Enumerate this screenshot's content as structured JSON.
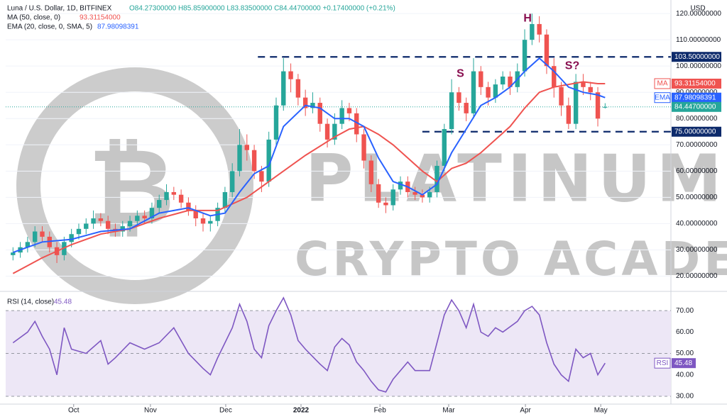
{
  "chart_data": {
    "type": "candlestick",
    "title": "Luna / U.S. Dollar, 1D, BITFINEX",
    "ohlc_text": "O84.27300000 H85.85900000 L83.83500000 C84.44700000 +0.17400000 (+0.21%)",
    "currency": "USD",
    "watermark": [
      "PLATINUM",
      "CRYPTO ACADEMY"
    ],
    "up_color": "#26a69a",
    "down_color": "#ef5350",
    "open": [
      28,
      29,
      31,
      33,
      37,
      35,
      31,
      28,
      33,
      36,
      38,
      40,
      42,
      41,
      38,
      37,
      39,
      41,
      43,
      42,
      46,
      49,
      52,
      51,
      48,
      45,
      42,
      40,
      41,
      46,
      52,
      60,
      70,
      68,
      60,
      56,
      72,
      85,
      98,
      95,
      88,
      84,
      86,
      78,
      72,
      78,
      84,
      82,
      74,
      64,
      55,
      48,
      47,
      53,
      56,
      52,
      51,
      50,
      52,
      62,
      76,
      90,
      86,
      82,
      98,
      92,
      88,
      93,
      96,
      92,
      98,
      110,
      116,
      112,
      100,
      92,
      85,
      78,
      94,
      92,
      90,
      84.273
    ],
    "high": [
      31,
      33,
      35,
      39,
      39,
      37,
      33,
      35,
      38,
      40,
      42,
      45,
      44,
      43,
      40,
      41,
      43,
      45,
      45,
      48,
      51,
      55,
      54,
      53,
      50,
      47,
      44,
      43,
      48,
      54,
      63,
      76,
      74,
      70,
      62,
      75,
      88,
      103,
      101,
      97,
      91,
      90,
      88,
      80,
      82,
      87,
      86,
      84,
      76,
      66,
      57,
      50,
      55,
      58,
      58,
      54,
      53,
      54,
      64,
      78,
      95,
      92,
      88,
      103,
      100,
      94,
      95,
      98,
      98,
      101,
      114,
      120,
      119,
      114,
      103,
      94,
      88,
      97,
      97,
      94,
      92,
      85.859
    ],
    "low": [
      26,
      27,
      29,
      31,
      33,
      29,
      25,
      26,
      31,
      34,
      36,
      38,
      39,
      36,
      35,
      35,
      37,
      39,
      40,
      40,
      44,
      47,
      49,
      46,
      43,
      39,
      37,
      37,
      39,
      44,
      50,
      58,
      64,
      57,
      52,
      54,
      70,
      83,
      90,
      85,
      81,
      82,
      75,
      69,
      70,
      76,
      79,
      71,
      61,
      52,
      46,
      44,
      45,
      51,
      50,
      49,
      48,
      48,
      50,
      60,
      74,
      83,
      79,
      80,
      89,
      85,
      86,
      91,
      89,
      90,
      96,
      108,
      109,
      97,
      88,
      81,
      76,
      76,
      89,
      87,
      77,
      83.835
    ],
    "close": [
      29,
      31,
      33,
      37,
      35,
      31,
      28,
      33,
      36,
      38,
      40,
      42,
      41,
      38,
      37,
      39,
      41,
      43,
      42,
      46,
      49,
      52,
      51,
      48,
      45,
      42,
      40,
      41,
      46,
      52,
      60,
      70,
      68,
      60,
      56,
      72,
      85,
      98,
      95,
      88,
      84,
      86,
      78,
      72,
      78,
      84,
      82,
      74,
      64,
      55,
      48,
      47,
      53,
      56,
      52,
      51,
      50,
      52,
      62,
      76,
      90,
      86,
      82,
      98,
      92,
      88,
      93,
      96,
      92,
      98,
      110,
      116,
      112,
      100,
      92,
      85,
      78,
      94,
      92,
      90,
      80,
      84.447
    ],
    "lines": [
      {
        "name": "MA (50, close, 0)",
        "value_label": "93.31154000",
        "tag": "MA",
        "color": "#ef5350",
        "x": [
          0,
          4,
          8,
          12,
          16,
          20,
          24,
          28,
          32,
          36,
          40,
          44,
          46,
          48,
          50,
          52,
          54,
          56,
          58,
          60,
          62,
          64,
          66,
          68,
          70,
          72,
          74,
          76,
          78,
          80,
          81
        ],
        "values": [
          21,
          27,
          32,
          36,
          38,
          42,
          45,
          45,
          50,
          58,
          66,
          73,
          76,
          77,
          74,
          70,
          65,
          60,
          56,
          61,
          63,
          67,
          72,
          77,
          84,
          90,
          92,
          93,
          94,
          93.3,
          93.31154
        ]
      },
      {
        "name": "EMA (20, close, 0, SMA, 5)",
        "value_label": "87.98098391",
        "tag": "EMA",
        "color": "#2962ff",
        "x": [
          0,
          4,
          8,
          12,
          16,
          20,
          24,
          27,
          29,
          31,
          33,
          35,
          37,
          40,
          42,
          44,
          46,
          48,
          50,
          52,
          54,
          56,
          58,
          60,
          62,
          64,
          66,
          68,
          70,
          72,
          74,
          76,
          78,
          80,
          81
        ],
        "values": [
          29,
          33,
          34,
          37,
          38,
          44,
          46,
          43,
          44,
          52,
          59,
          62,
          77,
          85,
          84,
          80,
          80,
          77,
          65,
          56,
          54,
          51,
          55,
          67,
          76,
          85,
          88,
          92,
          98,
          103,
          98,
          92,
          90,
          89,
          87.98098391
        ]
      }
    ],
    "levels": [
      {
        "value": 103.5,
        "label": "103.50000000",
        "color": "#0d2a6b"
      },
      {
        "value": 93.31154,
        "label": "93.31154000",
        "color": "#ef5350"
      },
      {
        "value": 87.98098391,
        "label": "87.98098391",
        "color": "#2962ff"
      },
      {
        "value": 84.447,
        "label": "84.44700000",
        "color": "#26a69a"
      },
      {
        "value": 75,
        "label": "75.00000000",
        "color": "#0d2a6b"
      }
    ],
    "hlines": [
      {
        "value": 103.5,
        "start": 33.5
      },
      {
        "value": 75,
        "start": 56
      }
    ],
    "annotations": [
      {
        "text": "H",
        "x": 70.4,
        "y": 118
      },
      {
        "text": "S",
        "x": 61.2,
        "y": 97
      },
      {
        "text": "S?",
        "x": 76.5,
        "y": 100
      }
    ],
    "xlim": [
      -1,
      90
    ],
    "ylim": [
      15,
      123
    ],
    "yticks": [
      {
        "value": 20,
        "label": "20.00000000"
      },
      {
        "value": 30,
        "label": "30.00000000"
      },
      {
        "value": 40,
        "label": "40.00000000"
      },
      {
        "value": 50,
        "label": "50.00000000"
      },
      {
        "value": 60,
        "label": "60.00000000"
      },
      {
        "value": 70,
        "label": "70.00000000"
      },
      {
        "value": 80,
        "label": "80.00000000"
      },
      {
        "value": 90,
        "label": "90.00000000"
      },
      {
        "value": 100,
        "label": "100.00000000"
      },
      {
        "value": 110,
        "label": "110.00000000"
      },
      {
        "value": 120,
        "label": "120.00000000"
      }
    ],
    "xticks": [
      {
        "value": 8.3,
        "label": "Oct"
      },
      {
        "value": 18.8,
        "label": "Nov"
      },
      {
        "value": 29.1,
        "label": "Dec"
      },
      {
        "value": 39.4,
        "label": "2022"
      },
      {
        "value": 50.2,
        "label": "Feb"
      },
      {
        "value": 59.6,
        "label": "Mar"
      },
      {
        "value": 70.1,
        "label": "Apr"
      },
      {
        "value": 80.4,
        "label": "May"
      }
    ],
    "rsi": {
      "name": "RSI (14, close)",
      "tag": "RSI",
      "value_label": "45.48",
      "color": "#7e57c2",
      "band_color": "#ede7f6",
      "x": [
        0,
        2,
        3,
        4,
        5,
        6,
        7,
        8,
        10,
        12,
        13,
        14,
        16,
        18,
        20,
        22,
        24,
        26,
        27,
        28,
        30,
        31,
        32,
        33,
        34,
        35,
        36,
        37,
        38,
        39,
        40,
        42,
        43,
        44,
        45,
        46,
        47,
        48,
        49,
        50,
        51,
        52,
        54,
        55,
        57,
        58,
        59,
        60,
        61,
        62,
        63,
        64,
        65,
        66,
        67,
        69,
        70,
        71,
        72,
        73,
        74,
        75,
        76,
        77,
        78,
        79,
        80,
        81
      ],
      "values": [
        55,
        60,
        65,
        58,
        52,
        40,
        62,
        52,
        50,
        56,
        45,
        48,
        55,
        52,
        55,
        62,
        50,
        43,
        40,
        48,
        62,
        73,
        65,
        52,
        48,
        63,
        70,
        76,
        68,
        56,
        52,
        45,
        42,
        53,
        57,
        54,
        46,
        42,
        37,
        33,
        32,
        38,
        46,
        42,
        42,
        55,
        68,
        75,
        70,
        62,
        73,
        60,
        58,
        62,
        60,
        65,
        70,
        72,
        68,
        55,
        45,
        40,
        37,
        52,
        48,
        50,
        40,
        45.48
      ],
      "band": [
        30,
        70
      ],
      "midline": 50,
      "ylim": [
        27,
        78
      ],
      "yticks": [
        {
          "value": 30,
          "label": "30.00"
        },
        {
          "value": 40,
          "label": "40.00"
        },
        {
          "value": 50,
          "label": "50.00"
        },
        {
          "value": 60,
          "label": "60.00"
        },
        {
          "value": 70,
          "label": "70.00"
        }
      ]
    }
  }
}
